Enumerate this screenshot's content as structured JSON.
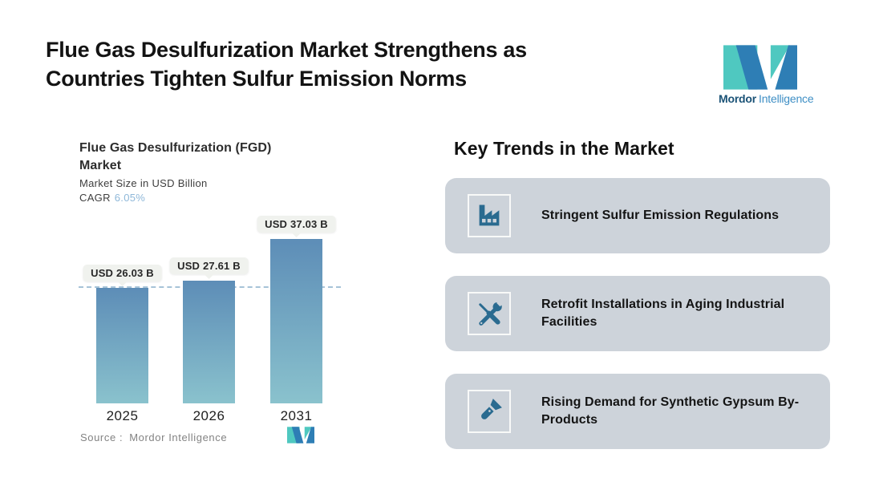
{
  "header": {
    "title_line1": "Flue Gas Desulfurization Market Strengthens as",
    "title_line2": "Countries Tighten Sulfur Emission Norms"
  },
  "brand": {
    "name_bold": "Mordor",
    "name_light": "Intelligence"
  },
  "chart": {
    "title_line1": "Flue Gas Desulfurization (FGD)",
    "title_line2": "Market",
    "subtitle": "Market Size in USD Billion",
    "cagr_label": "CAGR",
    "cagr_value": "6.05%",
    "source_label": "Source :",
    "source_value": "Mordor Intelligence"
  },
  "chart_data": {
    "type": "bar",
    "title": "Flue Gas Desulfurization (FGD) Market",
    "ylabel": "Market Size in USD Billion",
    "unit": "USD Billion",
    "cagr_percent": 6.05,
    "categories": [
      "2025",
      "2026",
      "2031"
    ],
    "values": [
      26.03,
      27.61,
      37.03
    ],
    "labels": [
      "USD 26.03 B",
      "USD 27.61 B",
      "USD 37.03 B"
    ],
    "ylim": [
      0,
      40
    ],
    "grid": false,
    "reference_line": {
      "style": "dashed",
      "value": 26.03
    },
    "bar_color_top": "#5d8db7",
    "bar_color_bottom": "#8ac2cd"
  },
  "trends": {
    "heading": "Key Trends in the Market",
    "cards": [
      {
        "icon": "factory-icon",
        "label": "Stringent Sulfur Emission Regulations"
      },
      {
        "icon": "tools-icon",
        "label": "Retrofit Installations in Aging Industrial Facilities"
      },
      {
        "icon": "flashlight-icon",
        "label": "Rising Demand for Synthetic Gypsum By-Products"
      }
    ]
  },
  "colors": {
    "accent_teal": "#4fc8c0",
    "accent_blue": "#2e7eb5",
    "card_background": "#cdd3da",
    "icon_color": "#2a6b90",
    "dashed_line": "#a6c3d8",
    "bubble_background": "#f0f2ee",
    "cagr_value_color": "#8fb8d9"
  }
}
